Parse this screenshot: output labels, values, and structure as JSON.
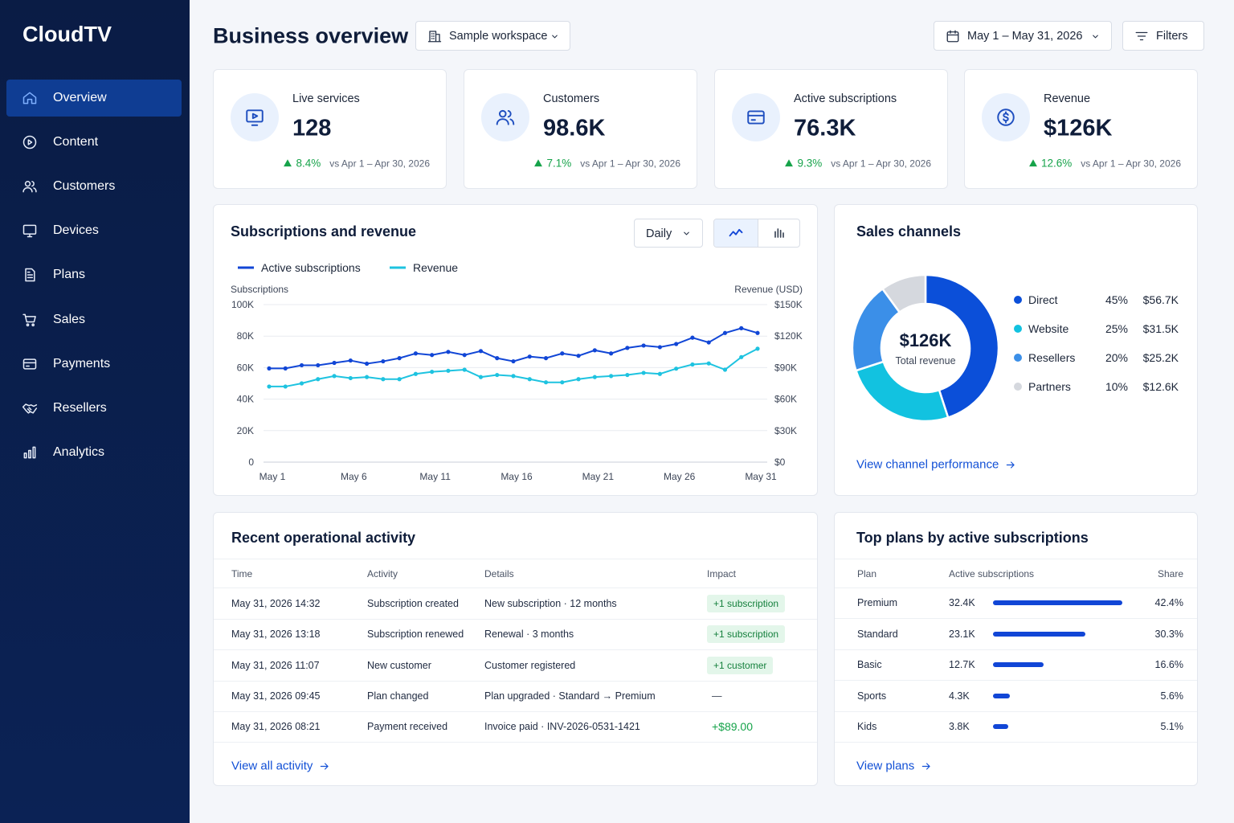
{
  "sidebar": {
    "brand": "CloudTV",
    "nav": [
      "Overview",
      "Content",
      "Customers",
      "Devices",
      "Plans",
      "Sales",
      "Payments",
      "Resellers",
      "Analytics"
    ]
  },
  "header": {
    "title": "Business overview",
    "workspace": "Sample workspace",
    "date_range": "May 1 – May 31, 2026",
    "filters": "Filters"
  },
  "kpis": [
    {
      "label": "Live services",
      "value": "128",
      "change": "8.4%",
      "comparison": "vs Apr 1 – Apr 30, 2026"
    },
    {
      "label": "Customers",
      "value": "98.6K",
      "change": "7.1%",
      "comparison": "vs Apr 1 – Apr 30, 2026"
    },
    {
      "label": "Active subscriptions",
      "value": "76.3K",
      "change": "9.3%",
      "comparison": "vs Apr 1 – Apr 30, 2026"
    },
    {
      "label": "Revenue",
      "value": "$126K",
      "change": "12.6%",
      "comparison": "vs Apr 1 – Apr 30, 2026"
    }
  ],
  "chart_data": [
    {
      "type": "line",
      "title": "Subscriptions and revenue",
      "period": "Daily",
      "ylabel": "Subscriptions",
      "y2label": "Revenue (USD)",
      "categories": [
        "May 1",
        null,
        null,
        null,
        null,
        "May 6",
        null,
        null,
        null,
        null,
        "May 11",
        null,
        null,
        null,
        null,
        "May 16",
        null,
        null,
        null,
        null,
        "May 21",
        null,
        null,
        null,
        null,
        "May 26",
        null,
        null,
        null,
        null,
        "May 31"
      ],
      "series": [
        {
          "name": "Active subscriptions",
          "color": "#1146d6",
          "values": [
            59500,
            59500,
            61500,
            61500,
            63000,
            64500,
            62500,
            64000,
            66000,
            69000,
            68000,
            70000,
            68000,
            70500,
            66000,
            64000,
            67000,
            66000,
            69000,
            67500,
            71000,
            69000,
            72500,
            74000,
            73000,
            75000,
            79000,
            76000,
            82000,
            85000,
            82000
          ]
        },
        {
          "name": "Revenue",
          "color": "#1ec3e0",
          "axis": "y2",
          "values": [
            72000,
            72000,
            75000,
            79000,
            82000,
            80000,
            81000,
            79000,
            79000,
            84000,
            86000,
            87000,
            88000,
            81000,
            83000,
            82000,
            79000,
            76000,
            76000,
            79000,
            81000,
            82000,
            83000,
            85000,
            84000,
            89000,
            93000,
            94000,
            88000,
            100000,
            108000
          ]
        }
      ],
      "ylim": [
        0,
        100000
      ],
      "yticks": [
        0,
        {
          "value": 20000,
          "label": "20K"
        },
        {
          "value": 40000,
          "label": "40K"
        },
        {
          "value": 60000,
          "label": "60K"
        },
        {
          "value": 80000,
          "label": "80K"
        },
        {
          "value": 100000,
          "label": "100K"
        }
      ],
      "y2lim": [
        0,
        150000
      ],
      "y2ticks": [
        {
          "value": 0,
          "label": "$0"
        },
        {
          "value": 30000,
          "label": "$30K"
        },
        {
          "value": 60000,
          "label": "$60K"
        },
        {
          "value": 90000,
          "label": "$90K"
        },
        {
          "value": 120000,
          "label": "$120K"
        },
        {
          "value": 150000,
          "label": "$150K"
        }
      ],
      "grid": true,
      "legend": "top-left"
    },
    {
      "type": "pie",
      "title": "Sales channels",
      "donut": true,
      "center_value": "$126K",
      "center_label": "Total revenue",
      "categories": [
        "Direct",
        "Website",
        "Resellers",
        "Partners"
      ],
      "values": [
        45,
        25,
        20,
        10
      ],
      "value_labels": [
        "45%",
        "25%",
        "20%",
        "10%"
      ],
      "amounts": [
        "$56.7K",
        "$31.5K",
        "$25.2K",
        "$12.6K"
      ],
      "colors": [
        "#0b4fd9",
        "#12c2e0",
        "#3b8fe8",
        "#d5d8de"
      ],
      "link": "View channel performance"
    }
  ],
  "activity": {
    "title": "Recent operational activity",
    "columns": [
      "Time",
      "Activity",
      "Details",
      "Impact"
    ],
    "rows": [
      [
        "May 31, 2026 14:32",
        "Subscription created",
        "New subscription · 12 months",
        "+1 subscription"
      ],
      [
        "May 31, 2026 13:18",
        "Subscription renewed",
        "Renewal · 3 months",
        "+1 subscription"
      ],
      [
        "May 31, 2026 11:07",
        "New customer",
        "Customer registered",
        "+1 customer"
      ],
      [
        "May 31, 2026 09:45",
        "Plan changed",
        "Plan upgraded · Standard → Premium",
        "—"
      ],
      [
        "May 31, 2026 08:21",
        "Payment received",
        "Invoice paid · INV-2026-0531-1421",
        "+$89.00"
      ]
    ],
    "link": "View all activity"
  },
  "plans": {
    "title": "Top plans by active subscriptions",
    "columns": [
      "Plan",
      "Active subscriptions",
      "Share"
    ],
    "rows": [
      {
        "plan": "Premium",
        "active": "32.4K",
        "share": 42.4,
        "share_label": "42.4%"
      },
      {
        "plan": "Standard",
        "active": "23.1K",
        "share": 30.3,
        "share_label": "30.3%"
      },
      {
        "plan": "Basic",
        "active": "12.7K",
        "share": 16.6,
        "share_label": "16.6%"
      },
      {
        "plan": "Sports",
        "active": "4.3K",
        "share": 5.6,
        "share_label": "5.6%"
      },
      {
        "plan": "Kids",
        "active": "3.8K",
        "share": 5.1,
        "share_label": "5.1%"
      }
    ],
    "link": "View plans"
  }
}
